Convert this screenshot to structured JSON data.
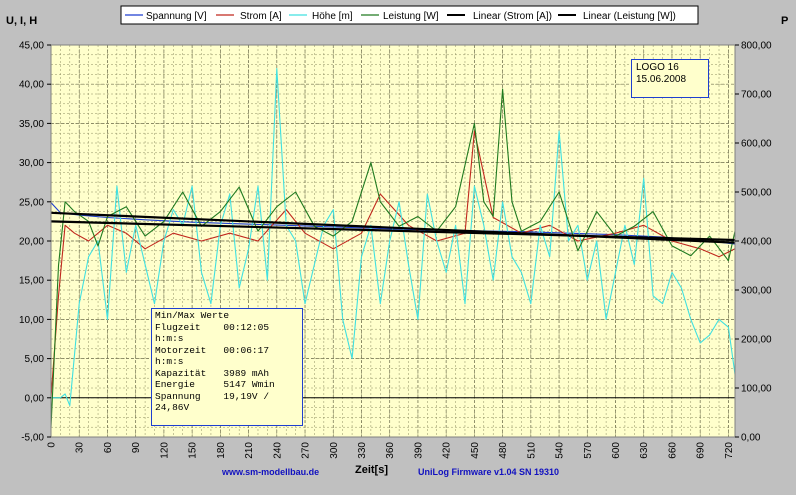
{
  "chart_data": {
    "type": "line",
    "left_axis_title": "U, I, H",
    "right_axis_title": "P",
    "xlabel": "Zeit[s]",
    "xlim": [
      0,
      727
    ],
    "x_ticks": [
      "0",
      "30",
      "60",
      "90",
      "120",
      "150",
      "180",
      "210",
      "240",
      "270",
      "300",
      "330",
      "360",
      "390",
      "420",
      "450",
      "480",
      "510",
      "540",
      "570",
      "600",
      "630",
      "660",
      "690",
      "720"
    ],
    "ylim_left": [
      -5,
      45
    ],
    "y_ticks_left": [
      "-5,00",
      "0,00",
      "5,00",
      "10,00",
      "15,00",
      "20,00",
      "25,00",
      "30,00",
      "35,00",
      "40,00",
      "45,00"
    ],
    "ylim_right": [
      0,
      800
    ],
    "y_ticks_right": [
      "0,00",
      "100,00",
      "200,00",
      "300,00",
      "400,00",
      "500,00",
      "600,00",
      "700,00",
      "800,00"
    ],
    "legend": [
      {
        "name": "Spannung [V]",
        "color": "#1e3fd0"
      },
      {
        "name": "Strom [A]",
        "color": "#c0281e"
      },
      {
        "name": "Höhe [m]",
        "color": "#40e0e0"
      },
      {
        "name": "Leistung [W]",
        "color": "#207a20"
      },
      {
        "name": "Linear (Strom [A])",
        "color": "#000000"
      },
      {
        "name": "Linear (Leistung [W])",
        "color": "#000000"
      }
    ],
    "series": [
      {
        "name": "Spannung [V]",
        "axis": "left",
        "x": [
          0,
          10,
          30,
          60,
          100,
          150,
          200,
          250,
          300,
          350,
          400,
          450,
          500,
          550,
          600,
          650,
          700,
          727
        ],
        "values": [
          24.9,
          23.6,
          23.3,
          23.0,
          22.7,
          22.4,
          22.2,
          22.0,
          21.8,
          21.6,
          21.4,
          21.3,
          21.2,
          21.0,
          20.8,
          20.5,
          20.0,
          19.6
        ]
      },
      {
        "name": "Strom [A]",
        "axis": "left",
        "x": [
          0,
          8,
          15,
          25,
          40,
          60,
          80,
          100,
          130,
          160,
          190,
          220,
          250,
          270,
          300,
          330,
          350,
          380,
          410,
          440,
          450,
          470,
          500,
          530,
          560,
          600,
          630,
          660,
          690,
          710,
          727
        ],
        "values": [
          0,
          13,
          22,
          21,
          20,
          22,
          21,
          19,
          21,
          20,
          21,
          20,
          24,
          21,
          19,
          21,
          26,
          22,
          20,
          21,
          34,
          23,
          21,
          22,
          20,
          21,
          22,
          20,
          19,
          18,
          19
        ]
      },
      {
        "name": "Höhe [m]",
        "axis": "left",
        "x": [
          0,
          10,
          15,
          20,
          30,
          40,
          50,
          60,
          70,
          80,
          90,
          100,
          110,
          120,
          130,
          140,
          150,
          160,
          170,
          180,
          190,
          200,
          210,
          220,
          230,
          240,
          250,
          260,
          270,
          280,
          290,
          300,
          310,
          320,
          330,
          340,
          350,
          360,
          370,
          380,
          390,
          400,
          410,
          420,
          430,
          440,
          450,
          460,
          470,
          480,
          490,
          500,
          510,
          520,
          530,
          540,
          550,
          560,
          570,
          580,
          590,
          600,
          610,
          620,
          630,
          640,
          650,
          660,
          670,
          680,
          690,
          700,
          710,
          720,
          727
        ],
        "values": [
          0,
          0,
          0.5,
          -1,
          12,
          18,
          20,
          10,
          27,
          16,
          22,
          17,
          12,
          20,
          24,
          22,
          27,
          16,
          12,
          22,
          26,
          14,
          19,
          27,
          15,
          42,
          22,
          20,
          12,
          17,
          22,
          24,
          10,
          5,
          18,
          22,
          12,
          20,
          25,
          17,
          10,
          26,
          20,
          16,
          22,
          12,
          27,
          22,
          15,
          25,
          18,
          16,
          12,
          22,
          18,
          34,
          20,
          22,
          15,
          20,
          10,
          16,
          22,
          17,
          28,
          13,
          12,
          16,
          14,
          10,
          7,
          8,
          10,
          9,
          3
        ]
      },
      {
        "name": "Leistung [W]",
        "axis": "right",
        "x": [
          0,
          8,
          15,
          25,
          40,
          50,
          60,
          80,
          100,
          120,
          140,
          160,
          180,
          200,
          220,
          240,
          260,
          280,
          300,
          320,
          340,
          350,
          370,
          390,
          410,
          430,
          450,
          460,
          470,
          480,
          490,
          500,
          520,
          540,
          560,
          580,
          600,
          620,
          640,
          660,
          680,
          700,
          720,
          727
        ],
        "values": [
          20,
          350,
          480,
          460,
          440,
          390,
          450,
          470,
          410,
          440,
          500,
          430,
          460,
          510,
          420,
          470,
          500,
          430,
          410,
          440,
          560,
          480,
          430,
          450,
          420,
          470,
          640,
          480,
          450,
          710,
          480,
          420,
          440,
          500,
          380,
          460,
          410,
          430,
          460,
          390,
          370,
          410,
          360,
          420
        ]
      },
      {
        "name": "Linear (Strom [A])",
        "axis": "left",
        "x": [
          0,
          727
        ],
        "values": [
          23.6,
          19.8
        ]
      },
      {
        "name": "Linear (Leistung [W])",
        "axis": "right",
        "x": [
          0,
          727
        ],
        "values": [
          440,
          402
        ]
      }
    ]
  },
  "stats": {
    "title": "Min/Max Werte",
    "rows": [
      "Flugzeit    00:12:05",
      "h:m:s",
      "Motorzeit   00:06:17",
      "h:m:s",
      "Kapazität   3989 mAh",
      "Energie     5147 Wmin",
      "Spannung    19,19V /",
      "24,86V"
    ]
  },
  "logo": {
    "line1": "LOGO 16",
    "line2": "15.06.2008"
  },
  "footer": {
    "left": "www.sm-modellbau.de",
    "right": "UniLog Firmware v1.04 SN 19310"
  },
  "colors": {
    "plot_bg": "#ffffcc",
    "frame_bg": "#c0c0c0"
  }
}
